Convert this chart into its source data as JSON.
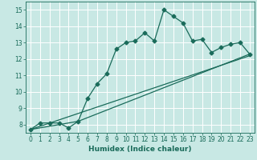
{
  "title": "",
  "xlabel": "Humidex (Indice chaleur)",
  "ylabel": "",
  "bg_color": "#c8e8e4",
  "grid_color": "#ffffff",
  "line_color": "#1a6b5a",
  "xlim": [
    -0.5,
    23.5
  ],
  "ylim": [
    7.5,
    15.5
  ],
  "xticks": [
    0,
    1,
    2,
    3,
    4,
    5,
    6,
    7,
    8,
    9,
    10,
    11,
    12,
    13,
    14,
    15,
    16,
    17,
    18,
    19,
    20,
    21,
    22,
    23
  ],
  "yticks": [
    8,
    9,
    10,
    11,
    12,
    13,
    14,
    15
  ],
  "line1_x": [
    0,
    1,
    2,
    3,
    4,
    5,
    6,
    7,
    8,
    9,
    10,
    11,
    12,
    13,
    14,
    15,
    16,
    17,
    18,
    19,
    20,
    21,
    22,
    23
  ],
  "line1_y": [
    7.7,
    8.1,
    8.1,
    8.1,
    7.8,
    8.2,
    9.6,
    10.5,
    11.1,
    12.6,
    13.0,
    13.1,
    13.6,
    13.1,
    15.0,
    14.6,
    14.2,
    13.1,
    13.2,
    12.4,
    12.7,
    12.9,
    13.0,
    12.3
  ],
  "line2_x": [
    0,
    23
  ],
  "line2_y": [
    7.7,
    12.2
  ],
  "line3_x": [
    0,
    5,
    23
  ],
  "line3_y": [
    7.7,
    8.2,
    12.3
  ],
  "marker": "D",
  "marker_size": 2.5,
  "linewidth": 0.9,
  "tick_fontsize": 5.5,
  "label_fontsize": 6.5
}
